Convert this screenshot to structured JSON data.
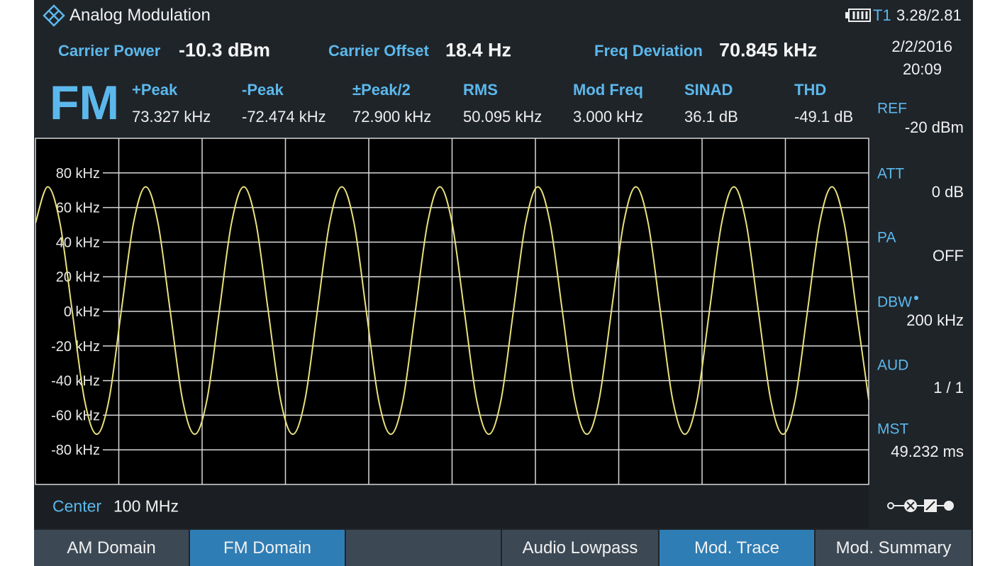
{
  "header": {
    "title": "Analog Modulation",
    "trace": "T1",
    "battery": "3.28/2.81"
  },
  "summary": [
    {
      "label": "Carrier Power",
      "value": "-10.3 dBm"
    },
    {
      "label": "Carrier Offset",
      "value": "18.4 Hz"
    },
    {
      "label": "Freq Deviation",
      "value": "70.845 kHz"
    }
  ],
  "datetime": {
    "date": "2/2/2016",
    "time": "20:09"
  },
  "mode": "FM",
  "measurements": [
    {
      "label": "+Peak",
      "value": "73.327 kHz"
    },
    {
      "label": "-Peak",
      "value": "-72.474 kHz"
    },
    {
      "label": "±Peak/2",
      "value": "72.900 kHz"
    },
    {
      "label": "RMS",
      "value": "50.095 kHz"
    },
    {
      "label": "Mod Freq",
      "value": "3.000 kHz"
    },
    {
      "label": "SINAD",
      "value": "36.1 dB"
    },
    {
      "label": "THD",
      "value": "-49.1 dB"
    }
  ],
  "side_params": [
    {
      "label": "REF",
      "value": "-20 dBm"
    },
    {
      "label": "ATT",
      "value": "0 dB"
    },
    {
      "label": "PA",
      "value": "OFF"
    },
    {
      "label": "DBW",
      "value": "200 kHz"
    },
    {
      "label": "AUD",
      "value": "1 / 1"
    },
    {
      "label": "MST",
      "value": "49.232 ms"
    }
  ],
  "footer": {
    "label": "Center",
    "value": "100 MHz"
  },
  "softkeys": [
    {
      "label": "AM Domain",
      "active": false
    },
    {
      "label": "FM Domain",
      "active": true
    },
    {
      "active": false
    },
    {
      "label": "Audio Lowpass",
      "active": false
    },
    {
      "label": "Mod. Trace",
      "active": true
    },
    {
      "label": "Mod. Summary",
      "active": false
    }
  ],
  "chart_data": {
    "type": "line",
    "ylim": [
      -100,
      100
    ],
    "yticks": [
      {
        "value": 80,
        "label": "80 kHz"
      },
      {
        "value": 60,
        "label": "60 kHz"
      },
      {
        "value": 40,
        "label": "40 kHz"
      },
      {
        "value": 20,
        "label": "20 kHz"
      },
      {
        "value": 0,
        "label": "0 kHz"
      },
      {
        "value": -20,
        "label": "-20 kHz"
      },
      {
        "value": -40,
        "label": "-40 kHz"
      },
      {
        "value": -60,
        "label": "-60 kHz"
      },
      {
        "value": -80,
        "label": "-80 kHz"
      }
    ],
    "grid": true,
    "series": [
      {
        "color": "#e9e27c",
        "values": [
          51,
          72,
          51,
          0,
          -51,
          -71,
          -51,
          0,
          51,
          72,
          51,
          0,
          -51,
          -71,
          -51,
          0,
          51,
          72,
          51,
          0,
          -51,
          -71,
          -51,
          0,
          51,
          72,
          51,
          0,
          -51,
          -71,
          -51,
          0,
          51,
          72,
          51,
          0,
          -51,
          -71,
          -51,
          0,
          51,
          72,
          51,
          0,
          -51,
          -71,
          -51,
          0,
          51,
          72,
          51,
          0,
          -51,
          -71,
          -51,
          0,
          51,
          72,
          51,
          0,
          -51,
          -71,
          -51,
          0,
          51,
          72,
          51,
          0,
          -51
        ]
      }
    ]
  }
}
